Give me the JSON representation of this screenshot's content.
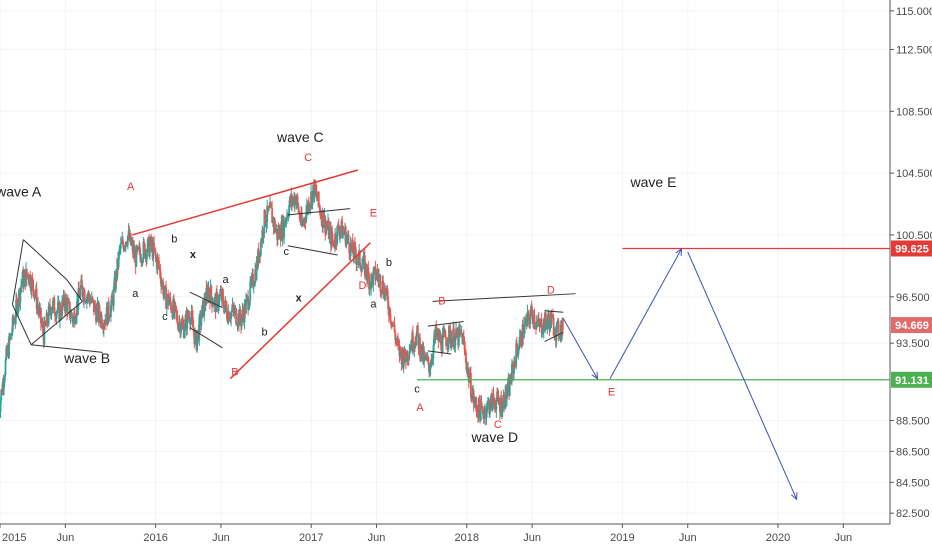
{
  "chart_data": {
    "type": "line",
    "instrument": "candlestick",
    "x_ticks": [
      "2015",
      "Jun",
      "2016",
      "Jun",
      "2017",
      "Jun",
      "2018",
      "Jun",
      "2019",
      "Jun",
      "2020",
      "Jun"
    ],
    "x_tick_years": [
      2015.0,
      2015.42,
      2016.0,
      2016.42,
      2017.0,
      2017.42,
      2018.0,
      2018.42,
      2019.0,
      2019.42,
      2020.0,
      2020.42
    ],
    "y_ticks": [
      "115.000",
      "112.500",
      "108.500",
      "104.500",
      "100.500",
      "96.500",
      "93.500",
      "88.500",
      "86.500",
      "84.500",
      "82.500"
    ],
    "y_tick_values": [
      115.0,
      112.5,
      108.5,
      104.5,
      100.5,
      96.5,
      93.5,
      88.5,
      86.5,
      84.5,
      82.5
    ],
    "ylim": [
      81.8,
      115.7
    ],
    "xlim": [
      2015.0,
      2020.72
    ],
    "price_series": {
      "x": [
        2014.99,
        2015.04,
        2015.09,
        2015.14,
        2015.18,
        2015.22,
        2015.28,
        2015.33,
        2015.38,
        2015.42,
        2015.47,
        2015.52,
        2015.57,
        2015.62,
        2015.67,
        2015.72,
        2015.77,
        2015.82,
        2015.87,
        2015.92,
        2015.97,
        2016.02,
        2016.06,
        2016.1,
        2016.14,
        2016.18,
        2016.22,
        2016.26,
        2016.3,
        2016.34,
        2016.38,
        2016.42,
        2016.46,
        2016.5,
        2016.55,
        2016.6,
        2016.65,
        2016.7,
        2016.74,
        2016.78,
        2016.82,
        2016.86,
        2016.9,
        2016.94,
        2016.98,
        2017.02,
        2017.06,
        2017.1,
        2017.14,
        2017.18,
        2017.22,
        2017.26,
        2017.3,
        2017.34,
        2017.38,
        2017.42,
        2017.47,
        2017.52,
        2017.56,
        2017.6,
        2017.64,
        2017.68,
        2017.72,
        2017.76,
        2017.8,
        2017.84,
        2017.88,
        2017.93,
        2017.97,
        2018.01,
        2018.05,
        2018.1,
        2018.14,
        2018.18,
        2018.22,
        2018.27,
        2018.32,
        2018.37,
        2018.42,
        2018.46,
        2018.5,
        2018.54,
        2018.58,
        2018.62
      ],
      "close": [
        89.0,
        92.5,
        95.0,
        97.5,
        98.0,
        97.0,
        94.0,
        96.0,
        95.5,
        96.2,
        95.0,
        97.0,
        96.5,
        95.5,
        95.0,
        96.0,
        99.5,
        100.5,
        99.0,
        99.5,
        99.8,
        98.5,
        96.5,
        96.0,
        95.0,
        94.5,
        95.5,
        93.5,
        95.5,
        97.0,
        96.0,
        96.5,
        95.5,
        95.5,
        95.0,
        96.5,
        98.5,
        101.5,
        102.0,
        100.5,
        101.0,
        102.5,
        103.0,
        101.0,
        102.5,
        103.5,
        102.0,
        101.0,
        100.0,
        101.0,
        100.5,
        99.5,
        99.0,
        98.5,
        97.5,
        98.0,
        97.0,
        95.0,
        93.0,
        92.5,
        93.5,
        94.0,
        92.5,
        92.0,
        94.0,
        93.5,
        94.0,
        93.8,
        94.0,
        91.5,
        89.5,
        89.0,
        89.5,
        89.8,
        89.5,
        90.5,
        93.0,
        94.5,
        95.5,
        94.5,
        94.8,
        95.0,
        94.2,
        94.669
      ]
    },
    "levels": [
      {
        "value": 99.625,
        "label": "99.625",
        "color": "#e53935"
      },
      {
        "value": 91.131,
        "label": "91.131",
        "color": "#4caf50"
      },
      {
        "value": 94.669,
        "label": "94.669",
        "color": "#e06b6b"
      }
    ],
    "annotations": [
      {
        "text": "wave A",
        "kind": "big",
        "color": "#222222",
        "x": 2015.12,
        "y": 103.0
      },
      {
        "text": "wave B",
        "kind": "big",
        "color": "#222222",
        "x": 2015.56,
        "y": 92.2
      },
      {
        "text": "wave C",
        "kind": "big",
        "color": "#222222",
        "x": 2016.93,
        "y": 106.5
      },
      {
        "text": "wave D",
        "kind": "big",
        "color": "#222222",
        "x": 2018.18,
        "y": 87.1
      },
      {
        "text": "wave E",
        "kind": "big",
        "color": "#222222",
        "x": 2019.2,
        "y": 103.6
      },
      {
        "text": "A",
        "kind": "red",
        "color": "#e53935",
        "x": 2015.84,
        "y": 103.4
      },
      {
        "text": "B",
        "kind": "red",
        "color": "#e53935",
        "x": 2016.51,
        "y": 91.4
      },
      {
        "text": "C",
        "kind": "red",
        "color": "#e53935",
        "x": 2016.98,
        "y": 105.3
      },
      {
        "text": "D",
        "kind": "red",
        "color": "#e53935",
        "x": 2017.33,
        "y": 97.0
      },
      {
        "text": "E",
        "kind": "red",
        "color": "#e53935",
        "x": 2017.4,
        "y": 101.7
      },
      {
        "text": "A",
        "kind": "red",
        "color": "#e53935",
        "x": 2017.7,
        "y": 89.1
      },
      {
        "text": "B",
        "kind": "red",
        "color": "#e53935",
        "x": 2017.84,
        "y": 96.0
      },
      {
        "text": "C",
        "kind": "red",
        "color": "#e53935",
        "x": 2018.2,
        "y": 88.0
      },
      {
        "text": "D",
        "kind": "red",
        "color": "#e53935",
        "x": 2018.54,
        "y": 96.7
      },
      {
        "text": "E",
        "kind": "red",
        "color": "#e53935",
        "x": 2018.93,
        "y": 90.1
      },
      {
        "text": "a",
        "kind": "small",
        "color": "#222222",
        "x": 2015.87,
        "y": 96.5
      },
      {
        "text": "b",
        "kind": "small",
        "color": "#222222",
        "x": 2016.12,
        "y": 100.0
      },
      {
        "text": "c",
        "kind": "small",
        "color": "#222222",
        "x": 2016.06,
        "y": 95.0
      },
      {
        "text": "x",
        "kind": "bold",
        "color": "#222222",
        "x": 2016.24,
        "y": 99.0
      },
      {
        "text": "a",
        "kind": "small",
        "color": "#222222",
        "x": 2016.45,
        "y": 97.4
      },
      {
        "text": "b",
        "kind": "small",
        "color": "#222222",
        "x": 2016.7,
        "y": 94.0
      },
      {
        "text": "c",
        "kind": "small",
        "color": "#222222",
        "x": 2016.84,
        "y": 99.2
      },
      {
        "text": "x",
        "kind": "bold",
        "color": "#222222",
        "x": 2016.92,
        "y": 96.2
      },
      {
        "text": "a",
        "kind": "small",
        "color": "#222222",
        "x": 2017.4,
        "y": 95.8
      },
      {
        "text": "b",
        "kind": "small",
        "color": "#222222",
        "x": 2017.5,
        "y": 98.5
      },
      {
        "text": "c",
        "kind": "small",
        "color": "#222222",
        "x": 2017.68,
        "y": 90.3
      }
    ]
  }
}
